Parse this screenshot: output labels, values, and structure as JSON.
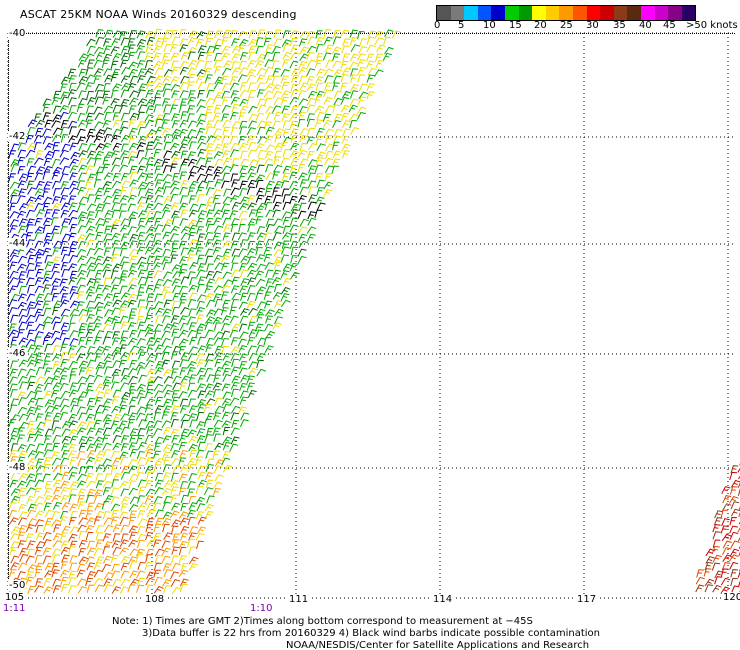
{
  "title": "ASCAT 25KM NOAA Winds 20160329 descending",
  "color_scale": {
    "segments": [
      "#555555",
      "#7a7a7a",
      "#00c8ff",
      "#0055ff",
      "#0000cc",
      "#00cc00",
      "#009900",
      "#ffff00",
      "#ffcc00",
      "#ff9900",
      "#ff5500",
      "#ff0000",
      "#cc0000",
      "#8b3a1a",
      "#5a2a10",
      "#ff00ff",
      "#cc00cc",
      "#880088",
      "#2a0066"
    ],
    "labels": [
      "0",
      "5",
      "10",
      "15",
      "20",
      "25",
      "30",
      "35",
      "40",
      "45",
      ">50 knots"
    ]
  },
  "lat_labels": [
    "-40",
    "-42",
    "-44",
    "-46",
    "-48",
    "-50"
  ],
  "lon_labels": [
    "105",
    "108",
    "111",
    "114",
    "117",
    "120"
  ],
  "time_labels": [
    "1:11",
    "1:10"
  ],
  "note": {
    "line1": "Note: 1) Times are GMT 2)Times along bottom correspond to measurement at −45S",
    "line2": "3)Data buffer is 22 hrs from 20160329 4) Black wind barbs indicate possible contamination",
    "line3": "NOAA/NESDIS/Center for Satellite Applications and Research"
  },
  "map": {
    "lat_range": [
      -50,
      -40
    ],
    "lon_range": [
      105,
      120
    ],
    "grid": true,
    "swaths": 2,
    "barb_colors": {
      "calm_blue": "#0000cc",
      "green": "#00aa00",
      "dark_green": "#006600",
      "yellow": "#eedd00",
      "orange": "#ff9900",
      "red_orange": "#dd4400",
      "red": "#cc0000",
      "brown": "#8b3a1a",
      "contaminated": "#000000"
    }
  }
}
